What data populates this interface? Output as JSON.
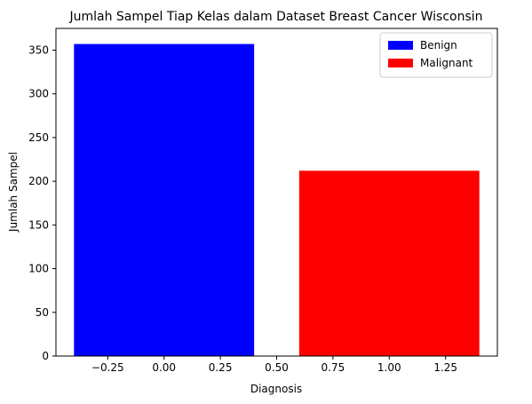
{
  "chart_data": {
    "type": "bar",
    "title": "Jumlah Sampel Tiap Kelas dalam Dataset Breast Cancer Wisconsin",
    "xlabel": "Diagnosis",
    "ylabel": "Jumlah Sampel",
    "x": [
      0,
      1
    ],
    "values": [
      357,
      212
    ],
    "bar_width": 0.8,
    "series": [
      {
        "name": "Benign",
        "x": 0,
        "value": 357,
        "color": "#0000ff"
      },
      {
        "name": "Malignant",
        "x": 1,
        "value": 212,
        "color": "#ff0000"
      }
    ],
    "xlim": [
      -0.48,
      1.48
    ],
    "ylim": [
      0,
      374.85
    ],
    "xticks": [
      -0.25,
      0.0,
      0.25,
      0.5,
      0.75,
      1.0,
      1.25
    ],
    "xtick_labels": [
      "−0.25",
      "0.00",
      "0.25",
      "0.50",
      "0.75",
      "1.00",
      "1.25"
    ],
    "yticks": [
      0,
      50,
      100,
      150,
      200,
      250,
      300,
      350
    ],
    "ytick_labels": [
      "0",
      "50",
      "100",
      "150",
      "200",
      "250",
      "300",
      "350"
    ],
    "grid": false,
    "legend_position": "top-right"
  }
}
